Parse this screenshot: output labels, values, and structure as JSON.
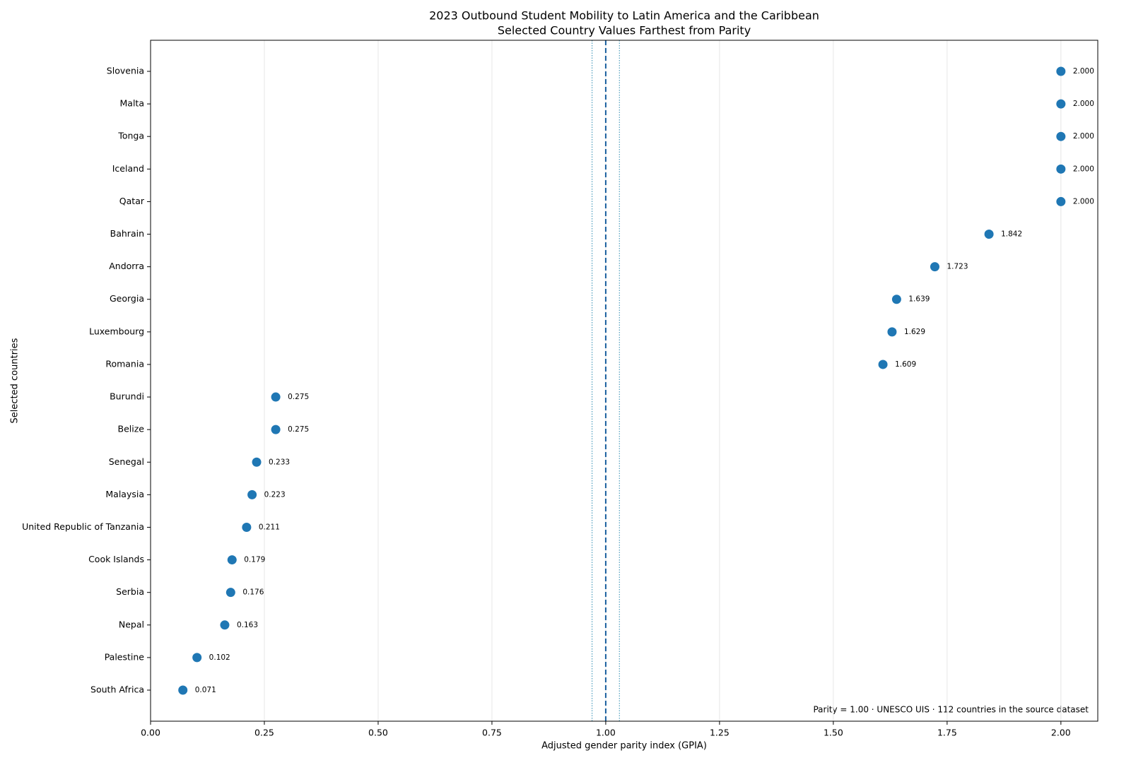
{
  "chart_data": {
    "type": "dot",
    "title": "2023 Outbound Student Mobility to Latin America and the Caribbean",
    "subtitle": "Selected Country Values Farthest from Parity",
    "x_label": "Adjusted gender parity index (GPIA)",
    "y_label": "Selected countries",
    "annotation": "Parity = 1.00 · UNESCO UIS · 112 countries in the source dataset",
    "categories": [
      "Slovenia",
      "Malta",
      "Tonga",
      "Iceland",
      "Qatar",
      "Bahrain",
      "Andorra",
      "Georgia",
      "Luxembourg",
      "Romania",
      "Burundi",
      "Belize",
      "Senegal",
      "Malaysia",
      "United Republic of Tanzania",
      "Cook Islands",
      "Serbia",
      "Nepal",
      "Palestine",
      "South Africa"
    ],
    "values": [
      2,
      2,
      2,
      2,
      2,
      1.842,
      1.723,
      1.639,
      1.629,
      1.609,
      0.275,
      0.275,
      0.233,
      0.223,
      0.211,
      0.179,
      0.176,
      0.163,
      0.102,
      0.071
    ],
    "value_labels": [
      "2.000",
      "2.000",
      "2.000",
      "2.000",
      "2.000",
      "1.842",
      "1.723",
      "1.639",
      "1.629",
      "1.609",
      "0.275",
      "0.275",
      "0.233",
      "0.223",
      "0.211",
      "0.179",
      "0.176",
      "0.163",
      "0.102",
      "0.071"
    ],
    "color": "#1f77b4",
    "parity": 1,
    "parity_color": "#1a5f9e",
    "parity_band": [
      0.97,
      1.03
    ],
    "band_color": "#2a8ab0",
    "xlim": [
      0,
      2.081
    ],
    "xticks": [
      {
        "value": 0,
        "label": "0.00"
      },
      {
        "value": 0.25,
        "label": "0.25"
      },
      {
        "value": 0.5,
        "label": "0.50"
      },
      {
        "value": 0.75,
        "label": "0.75"
      },
      {
        "value": 1,
        "label": "1.00"
      },
      {
        "value": 1.25,
        "label": "1.25"
      },
      {
        "value": 1.5,
        "label": "1.50"
      },
      {
        "value": 1.75,
        "label": "1.75"
      },
      {
        "value": 2,
        "label": "2.00"
      }
    ],
    "grid": true
  }
}
